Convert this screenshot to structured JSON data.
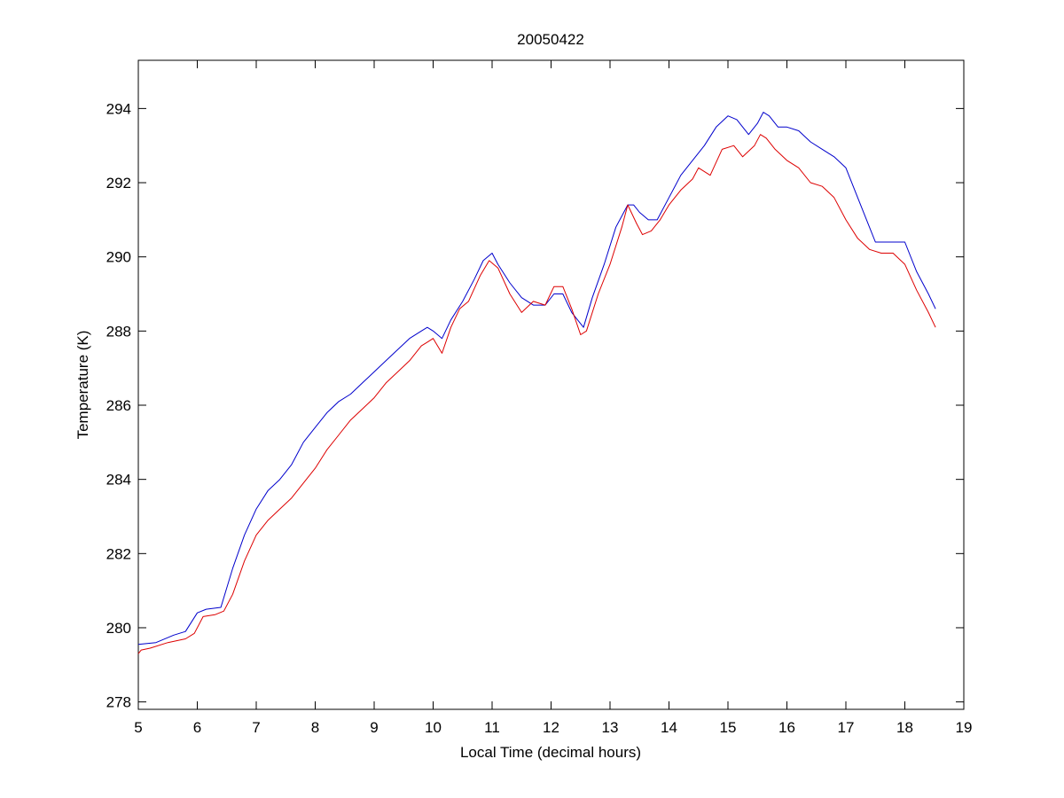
{
  "chart_data": {
    "type": "line",
    "title": "20050422",
    "xlabel": "Local Time (decimal hours)",
    "ylabel": "Temperature (K)",
    "xlim": [
      5,
      19
    ],
    "ylim": [
      277.8,
      295.3
    ],
    "xticks": [
      5,
      6,
      7,
      8,
      9,
      10,
      11,
      12,
      13,
      14,
      15,
      16,
      17,
      18,
      19
    ],
    "yticks": [
      278,
      280,
      282,
      284,
      286,
      288,
      290,
      292,
      294
    ],
    "grid": false,
    "legend": "none",
    "colors": {
      "series_blue": "#0000cc",
      "series_red": "#dd0000",
      "axes": "#000000"
    },
    "series": [
      {
        "color": "#0000cc",
        "x": [
          5.0,
          5.3,
          5.6,
          5.8,
          6.0,
          6.15,
          6.4,
          6.6,
          6.8,
          7.0,
          7.2,
          7.4,
          7.6,
          7.8,
          8.0,
          8.2,
          8.4,
          8.6,
          8.8,
          9.0,
          9.2,
          9.4,
          9.6,
          9.8,
          9.9,
          10.0,
          10.15,
          10.3,
          10.5,
          10.7,
          10.85,
          11.0,
          11.1,
          11.3,
          11.5,
          11.7,
          11.9,
          12.05,
          12.2,
          12.35,
          12.55,
          12.7,
          12.9,
          13.1,
          13.3,
          13.4,
          13.5,
          13.65,
          13.8,
          14.0,
          14.2,
          14.4,
          14.6,
          14.8,
          15.0,
          15.15,
          15.35,
          15.5,
          15.6,
          15.7,
          15.85,
          16.0,
          16.2,
          16.4,
          16.6,
          16.8,
          17.0,
          17.2,
          17.4,
          17.5,
          17.7,
          17.9,
          18.0,
          18.2,
          18.4,
          18.52
        ],
        "y": [
          279.55,
          279.6,
          279.8,
          279.9,
          280.4,
          280.5,
          280.55,
          281.6,
          282.5,
          283.2,
          283.7,
          284.0,
          284.4,
          285.0,
          285.4,
          285.8,
          286.1,
          286.3,
          286.6,
          286.9,
          287.2,
          287.5,
          287.8,
          288.0,
          288.1,
          288.0,
          287.8,
          288.3,
          288.8,
          289.4,
          289.9,
          290.1,
          289.8,
          289.3,
          288.9,
          288.7,
          288.7,
          289.0,
          289.0,
          288.5,
          288.1,
          288.9,
          289.8,
          290.8,
          291.4,
          291.4,
          291.2,
          291.0,
          291.0,
          291.6,
          292.2,
          292.6,
          293.0,
          293.5,
          293.8,
          293.7,
          293.3,
          293.6,
          293.9,
          293.8,
          293.5,
          293.5,
          293.4,
          293.1,
          292.9,
          292.7,
          292.4,
          291.6,
          290.8,
          290.4,
          290.4,
          290.4,
          290.4,
          289.6,
          289.0,
          288.6
        ]
      },
      {
        "color": "#dd0000",
        "x": [
          5.0,
          5.05,
          5.2,
          5.5,
          5.8,
          5.95,
          6.1,
          6.3,
          6.45,
          6.6,
          6.8,
          7.0,
          7.2,
          7.4,
          7.6,
          7.8,
          8.0,
          8.2,
          8.4,
          8.6,
          8.8,
          9.0,
          9.2,
          9.4,
          9.6,
          9.8,
          9.9,
          10.0,
          10.15,
          10.3,
          10.45,
          10.6,
          10.8,
          10.95,
          11.1,
          11.3,
          11.5,
          11.7,
          11.9,
          12.05,
          12.2,
          12.35,
          12.5,
          12.6,
          12.8,
          13.0,
          13.2,
          13.3,
          13.45,
          13.55,
          13.7,
          13.85,
          14.0,
          14.2,
          14.4,
          14.5,
          14.7,
          14.9,
          15.1,
          15.25,
          15.45,
          15.55,
          15.65,
          15.8,
          16.0,
          16.2,
          16.4,
          16.6,
          16.8,
          17.0,
          17.2,
          17.4,
          17.6,
          17.8,
          18.0,
          18.2,
          18.4,
          18.52
        ],
        "y": [
          279.3,
          279.4,
          279.45,
          279.6,
          279.7,
          279.85,
          280.3,
          280.35,
          280.45,
          280.9,
          281.8,
          282.5,
          282.9,
          283.2,
          283.5,
          283.9,
          284.3,
          284.8,
          285.2,
          285.6,
          285.9,
          286.2,
          286.6,
          286.9,
          287.2,
          287.6,
          287.7,
          287.8,
          287.4,
          288.1,
          288.6,
          288.8,
          289.5,
          289.9,
          289.7,
          289.0,
          288.5,
          288.8,
          288.7,
          289.2,
          289.2,
          288.6,
          287.9,
          288.0,
          289.0,
          289.8,
          290.8,
          291.4,
          290.9,
          290.6,
          290.7,
          291.0,
          291.4,
          291.8,
          292.1,
          292.4,
          292.2,
          292.9,
          293.0,
          292.7,
          293.0,
          293.3,
          293.2,
          292.9,
          292.6,
          292.4,
          292.0,
          291.9,
          291.6,
          291.0,
          290.5,
          290.2,
          290.1,
          290.1,
          289.8,
          289.1,
          288.5,
          288.1
        ]
      }
    ]
  }
}
